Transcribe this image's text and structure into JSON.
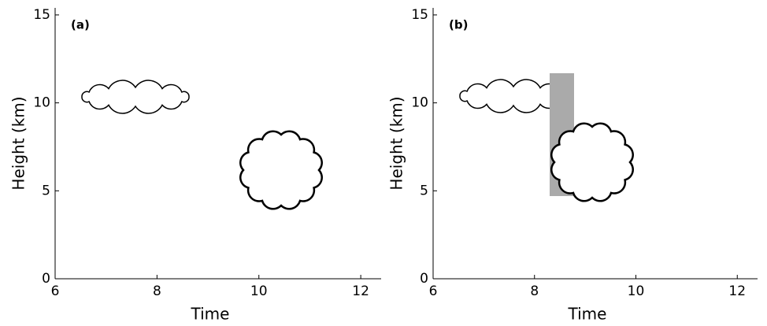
{
  "chart_data": [
    {
      "type": "schematic",
      "panel_label": "(a)",
      "x_label": "Time",
      "y_label": "Height (km)",
      "xlim": [
        6,
        12.4
      ],
      "ylim": [
        0,
        15.4
      ],
      "xticks": [
        6,
        8,
        10,
        12
      ],
      "yticks": [
        0,
        5,
        10,
        15
      ]
    },
    {
      "type": "schematic",
      "panel_label": "(b)",
      "x_label": "Time",
      "y_label": "Height (km)",
      "xlim": [
        6,
        12.4
      ],
      "ylim": [
        0,
        15.4
      ],
      "xticks": [
        6,
        8,
        10,
        12
      ],
      "yticks": [
        0,
        5,
        10,
        15
      ]
    }
  ]
}
